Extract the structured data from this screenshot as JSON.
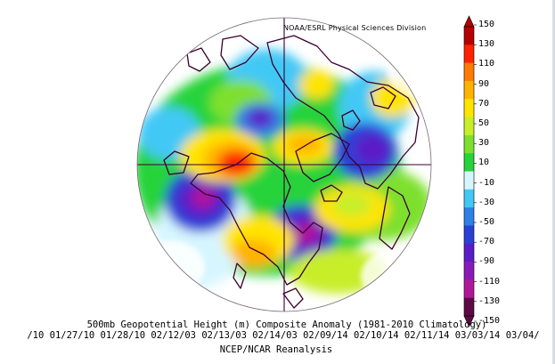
{
  "credit": "NOAA/ESRL Physical Sciences Division",
  "title": "500mb Geopotential Height (m) Composite Anomaly (1981-2010 Climatology)",
  "dates": "/10 01/27/10 01/28/10 02/12/03 02/13/03 02/14/03 02/09/14 02/10/14 02/11/14 03/03/14 03/04/",
  "source": "NCEP/NCAR Reanalysis",
  "colorbar": {
    "labels": [
      "150",
      "130",
      "110",
      "90",
      "70",
      "50",
      "30",
      "10",
      "-10",
      "-30",
      "-50",
      "-70",
      "-90",
      "-110",
      "-130",
      "-150"
    ],
    "colors": [
      "#b30000",
      "#ff2200",
      "#ff7a00",
      "#ffb300",
      "#ffe400",
      "#c8ee2a",
      "#7ee02e",
      "#26d33a",
      "#d6f6ff",
      "#43c8f5",
      "#2e7fe6",
      "#2a3fd6",
      "#5a1cc7",
      "#8a1ab8",
      "#b0189c",
      "#5e0a45"
    ]
  },
  "map": {
    "projection": "north polar stereographic",
    "land_outline_color": "#3a0030"
  }
}
